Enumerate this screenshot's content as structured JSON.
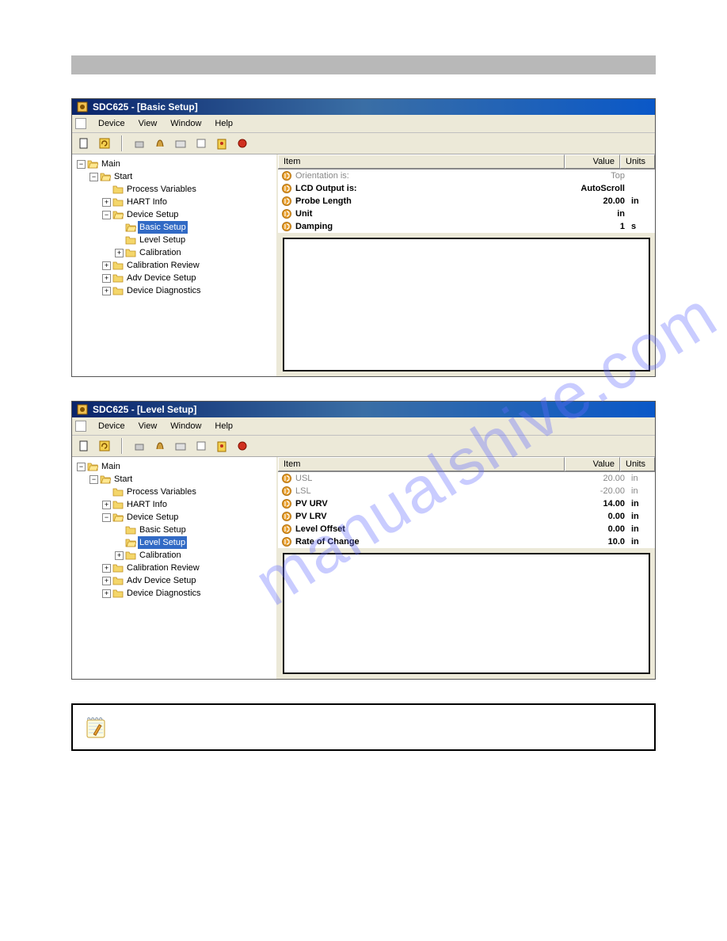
{
  "watermark_text": "manualshive.com",
  "window1": {
    "title": "SDC625 - [Basic Setup]",
    "menu": [
      "Device",
      "View",
      "Window",
      "Help"
    ],
    "table_headers": {
      "item": "Item",
      "value": "Value",
      "units": "Units"
    },
    "items": [
      {
        "label": "Orientation is:",
        "value": "Top",
        "units": "",
        "bold": false,
        "dim": true
      },
      {
        "label": "LCD Output is:",
        "value": "AutoScroll",
        "units": "",
        "bold": true,
        "dim": false
      },
      {
        "label": "Probe Length",
        "value": "20.00",
        "units": "in",
        "bold": true,
        "dim": false
      },
      {
        "label": "Unit",
        "value": "in",
        "units": "",
        "bold": true,
        "dim": false
      },
      {
        "label": "Damping",
        "value": "1",
        "units": "s",
        "bold": true,
        "dim": false
      }
    ],
    "tree": {
      "root": {
        "label": "Main",
        "exp": "-"
      },
      "start": {
        "label": "Start",
        "exp": "-"
      },
      "pv": {
        "label": "Process Variables"
      },
      "hart": {
        "label": "HART Info",
        "exp": "+"
      },
      "devsetup": {
        "label": "Device Setup",
        "exp": "-"
      },
      "basic": {
        "label": "Basic Setup",
        "selected": true
      },
      "level": {
        "label": "Level Setup",
        "selected": false
      },
      "calib": {
        "label": "Calibration",
        "exp": "+"
      },
      "calrev": {
        "label": "Calibration Review",
        "exp": "+"
      },
      "adv": {
        "label": "Adv Device Setup",
        "exp": "+"
      },
      "diag": {
        "label": "Device Diagnostics",
        "exp": "+"
      }
    }
  },
  "window2": {
    "title": "SDC625 - [Level Setup]",
    "menu": [
      "Device",
      "View",
      "Window",
      "Help"
    ],
    "table_headers": {
      "item": "Item",
      "value": "Value",
      "units": "Units"
    },
    "items": [
      {
        "label": "USL",
        "value": "20.00",
        "units": "in",
        "bold": false,
        "dim": true
      },
      {
        "label": "LSL",
        "value": "-20.00",
        "units": "in",
        "bold": false,
        "dim": true
      },
      {
        "label": "PV URV",
        "value": "14.00",
        "units": "in",
        "bold": true,
        "dim": false
      },
      {
        "label": "PV LRV",
        "value": "0.00",
        "units": "in",
        "bold": true,
        "dim": false
      },
      {
        "label": "Level Offset",
        "value": "0.00",
        "units": "in",
        "bold": true,
        "dim": false
      },
      {
        "label": "Rate of Change",
        "value": "10.0",
        "units": "in",
        "bold": true,
        "dim": false
      }
    ],
    "tree": {
      "root": {
        "label": "Main",
        "exp": "-"
      },
      "start": {
        "label": "Start",
        "exp": "-"
      },
      "pv": {
        "label": "Process Variables"
      },
      "hart": {
        "label": "HART Info",
        "exp": "+"
      },
      "devsetup": {
        "label": "Device Setup",
        "exp": "-"
      },
      "basic": {
        "label": "Basic Setup",
        "selected": false
      },
      "level": {
        "label": "Level Setup",
        "selected": true
      },
      "calib": {
        "label": "Calibration",
        "exp": "+"
      },
      "calrev": {
        "label": "Calibration Review",
        "exp": "+"
      },
      "adv": {
        "label": "Adv Device Setup",
        "exp": "+"
      },
      "diag": {
        "label": "Device Diagnostics",
        "exp": "+"
      }
    }
  },
  "icons": {
    "folder_closed_fill": "#f4d66a",
    "folder_closed_stroke": "#c09020",
    "row_icon_fill": "#e8a030",
    "row_icon_stroke": "#b07010"
  }
}
